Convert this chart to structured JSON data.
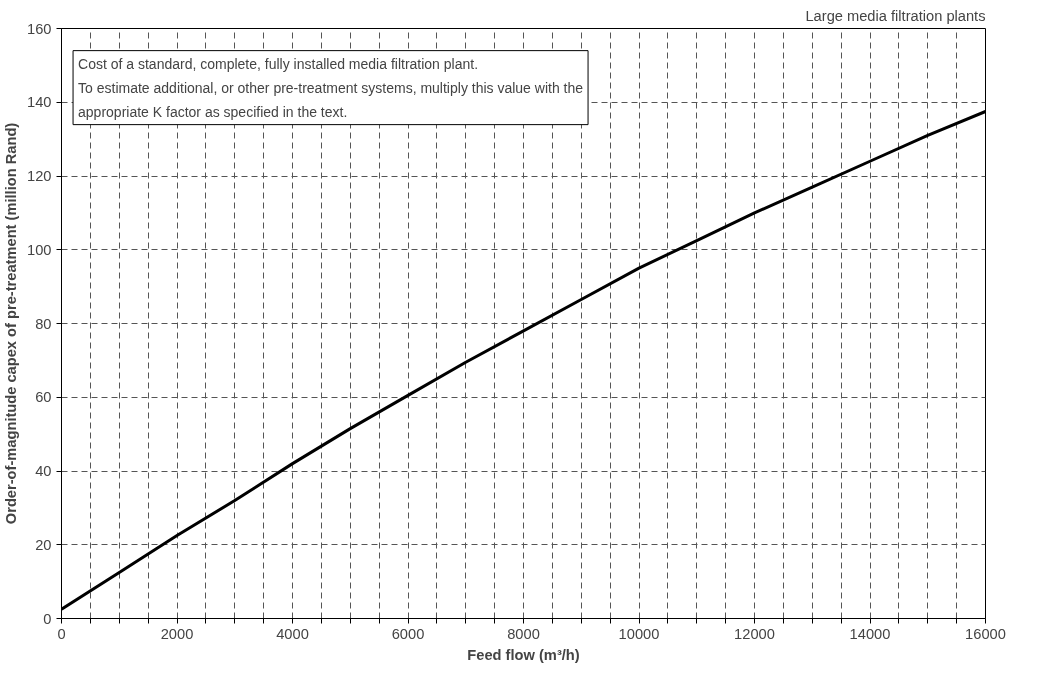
{
  "chart_data": {
    "type": "line",
    "title": "Large media filtration plants",
    "xlabel": "Feed flow (m³/h)",
    "ylabel": "Order-of-magnitude capex of pre-treatment (million Rand)",
    "annotations": [
      "Cost of a standard, complete, fully installed media filtration plant.\nTo estimate additional, or other pre-treatment systems, multiply this value with the\nappropriate K  factor as specified in the text."
    ],
    "x": [
      0,
      1000,
      2000,
      3000,
      4000,
      5000,
      6000,
      7000,
      8000,
      9000,
      10000,
      11000,
      12000,
      13000,
      14000,
      15000,
      16000
    ],
    "series": [
      {
        "color": "#000000",
        "values": [
          2.5,
          12.5,
          22.5,
          32,
          42,
          51.5,
          60.5,
          69.5,
          78,
          86.5,
          95,
          102.5,
          110,
          117,
          124,
          131,
          137.5
        ]
      }
    ],
    "xlim": [
      0,
      16000
    ],
    "ylim": [
      0,
      160
    ],
    "xticks": [
      0,
      {
        "value": 500,
        "label": null
      },
      {
        "value": 1000,
        "label": null
      },
      {
        "value": 1500,
        "label": null
      },
      2000,
      {
        "value": 2500,
        "label": null
      },
      {
        "value": 3000,
        "label": null
      },
      {
        "value": 3500,
        "label": null
      },
      4000,
      {
        "value": 4500,
        "label": null
      },
      {
        "value": 5000,
        "label": null
      },
      {
        "value": 5500,
        "label": null
      },
      6000,
      {
        "value": 6500,
        "label": null
      },
      {
        "value": 7000,
        "label": null
      },
      {
        "value": 7500,
        "label": null
      },
      8000,
      {
        "value": 8500,
        "label": null
      },
      {
        "value": 9000,
        "label": null
      },
      {
        "value": 9500,
        "label": null
      },
      10000,
      {
        "value": 10500,
        "label": null
      },
      {
        "value": 11000,
        "label": null
      },
      {
        "value": 11500,
        "label": null
      },
      12000,
      {
        "value": 12500,
        "label": null
      },
      {
        "value": 13000,
        "label": null
      },
      {
        "value": 13500,
        "label": null
      },
      14000,
      {
        "value": 14500,
        "label": null
      },
      {
        "value": 15000,
        "label": null
      },
      {
        "value": 15500,
        "label": null
      },
      16000
    ],
    "yticks": [
      0,
      20,
      40,
      60,
      80,
      100,
      120,
      140,
      160
    ],
    "grid": true,
    "marker": "none",
    "line_style": "solid"
  }
}
